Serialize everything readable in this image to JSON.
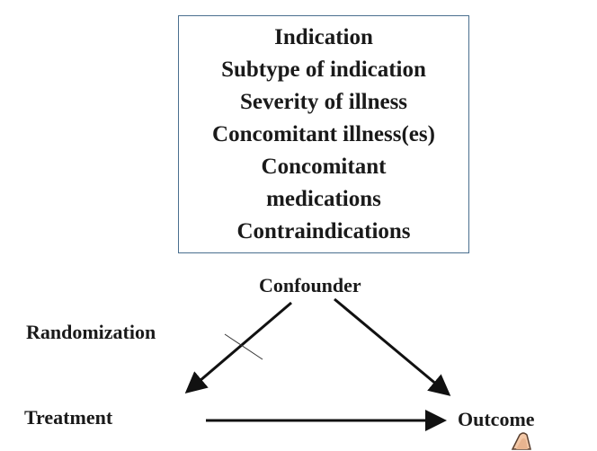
{
  "confounder_box": {
    "lines": [
      "Indication",
      "Subtype of indication",
      "Severity of illness",
      "Concomitant illness(es)",
      "Concomitant",
      "medications",
      "Contraindications"
    ]
  },
  "nodes": {
    "confounder": "Confounder",
    "randomization": "Randomization",
    "treatment": "Treatment",
    "outcome": "Outcome"
  },
  "edges": [
    {
      "from": "confounder",
      "to": "treatment",
      "blocked_by": "randomization"
    },
    {
      "from": "confounder",
      "to": "outcome"
    },
    {
      "from": "treatment",
      "to": "outcome"
    }
  ],
  "colors": {
    "box_border": "#4a6f8f",
    "text": "#1a1a1a",
    "arrow": "#111111"
  }
}
